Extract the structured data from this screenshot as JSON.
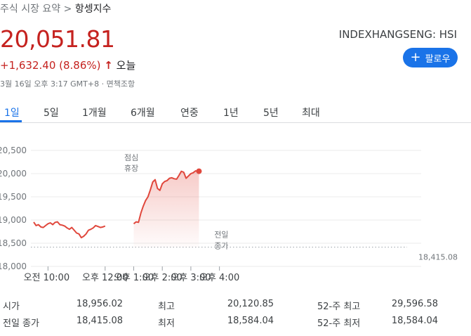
{
  "breadcrumb": {
    "parent": "주식 시장 요약",
    "sep": " > ",
    "current": "항셍지수"
  },
  "quote": {
    "price": "20,051.81",
    "change": "+1,632.40 (8.86%)",
    "arrow": "↑",
    "period": "오늘",
    "ticker": "INDEXHANGSENG: HSI",
    "timestamp": "3월 16일 오후 3:17 GMT+8 · 면책조항"
  },
  "follow": {
    "label": "팔로우",
    "icon": "plus-icon"
  },
  "tabs": [
    "1일",
    "5일",
    "1개월",
    "6개월",
    "연중",
    "1년",
    "5년",
    "최대"
  ],
  "active_tab": "1일",
  "colors": {
    "accent": "#1a73e8",
    "negative": "#c5221f",
    "line": "#e0473c"
  },
  "chart_data": {
    "type": "line",
    "ylim": [
      18000,
      20500
    ],
    "yticks": [
      "18,000",
      "18,500",
      "19,000",
      "19,500",
      "20,000",
      "20,500"
    ],
    "xticks": [
      "오전 10:00",
      "오후 12:00",
      "오후 1:00",
      "오후 2:00",
      "오후 3:00",
      "오후 4:00"
    ],
    "break_label": [
      "점심",
      "휴장"
    ],
    "prev_close": {
      "label1": "전일",
      "label2": "종가",
      "value": "18,415.08",
      "y": 18415.08
    },
    "series": [
      {
        "session": "morning",
        "x": [
          "9:30",
          "9:35",
          "9:40",
          "9:45",
          "9:50",
          "9:55",
          "10:00",
          "10:05",
          "10:10",
          "10:15",
          "10:20",
          "10:25",
          "10:30",
          "10:35",
          "10:40",
          "10:45",
          "10:50",
          "10:55",
          "11:00",
          "11:05",
          "11:10",
          "11:15",
          "11:20",
          "11:25",
          "11:30",
          "11:35",
          "11:40",
          "11:45",
          "11:50",
          "11:55",
          "12:00"
        ],
        "y": [
          18956,
          18880,
          18900,
          18850,
          18840,
          18880,
          18920,
          18940,
          18900,
          18950,
          18960,
          18900,
          18890,
          18870,
          18830,
          18800,
          18840,
          18780,
          18720,
          18700,
          18620,
          18650,
          18700,
          18780,
          18800,
          18830,
          18880,
          18860,
          18840,
          18850,
          18870
        ]
      },
      {
        "session": "afternoon",
        "x": [
          "13:00",
          "13:05",
          "13:10",
          "13:15",
          "13:20",
          "13:25",
          "13:30",
          "13:35",
          "13:40",
          "13:45",
          "13:50",
          "13:55",
          "14:00",
          "14:05",
          "14:10",
          "14:15",
          "14:20",
          "14:25",
          "14:30",
          "14:35",
          "14:40",
          "14:45",
          "14:50",
          "14:55",
          "15:00",
          "15:05",
          "15:10",
          "15:15",
          "15:17"
        ],
        "y": [
          18920,
          18960,
          18950,
          19150,
          19300,
          19420,
          19500,
          19650,
          19820,
          19870,
          19680,
          19640,
          19780,
          19830,
          19850,
          19900,
          19910,
          19890,
          19880,
          19960,
          20050,
          20030,
          19900,
          19950,
          20000,
          20020,
          20060,
          20040,
          20052
        ]
      }
    ]
  },
  "stats": [
    [
      {
        "label": "시가",
        "value": "18,956.02"
      },
      {
        "label": "최고",
        "value": "20,120.85"
      },
      {
        "label": "52-주 최고",
        "value": "29,596.58"
      }
    ],
    [
      {
        "label": "전일 종가",
        "value": "18,415.08"
      },
      {
        "label": "최저",
        "value": "18,584.04"
      },
      {
        "label": "52-주 최저",
        "value": "18,584.04"
      }
    ]
  ]
}
